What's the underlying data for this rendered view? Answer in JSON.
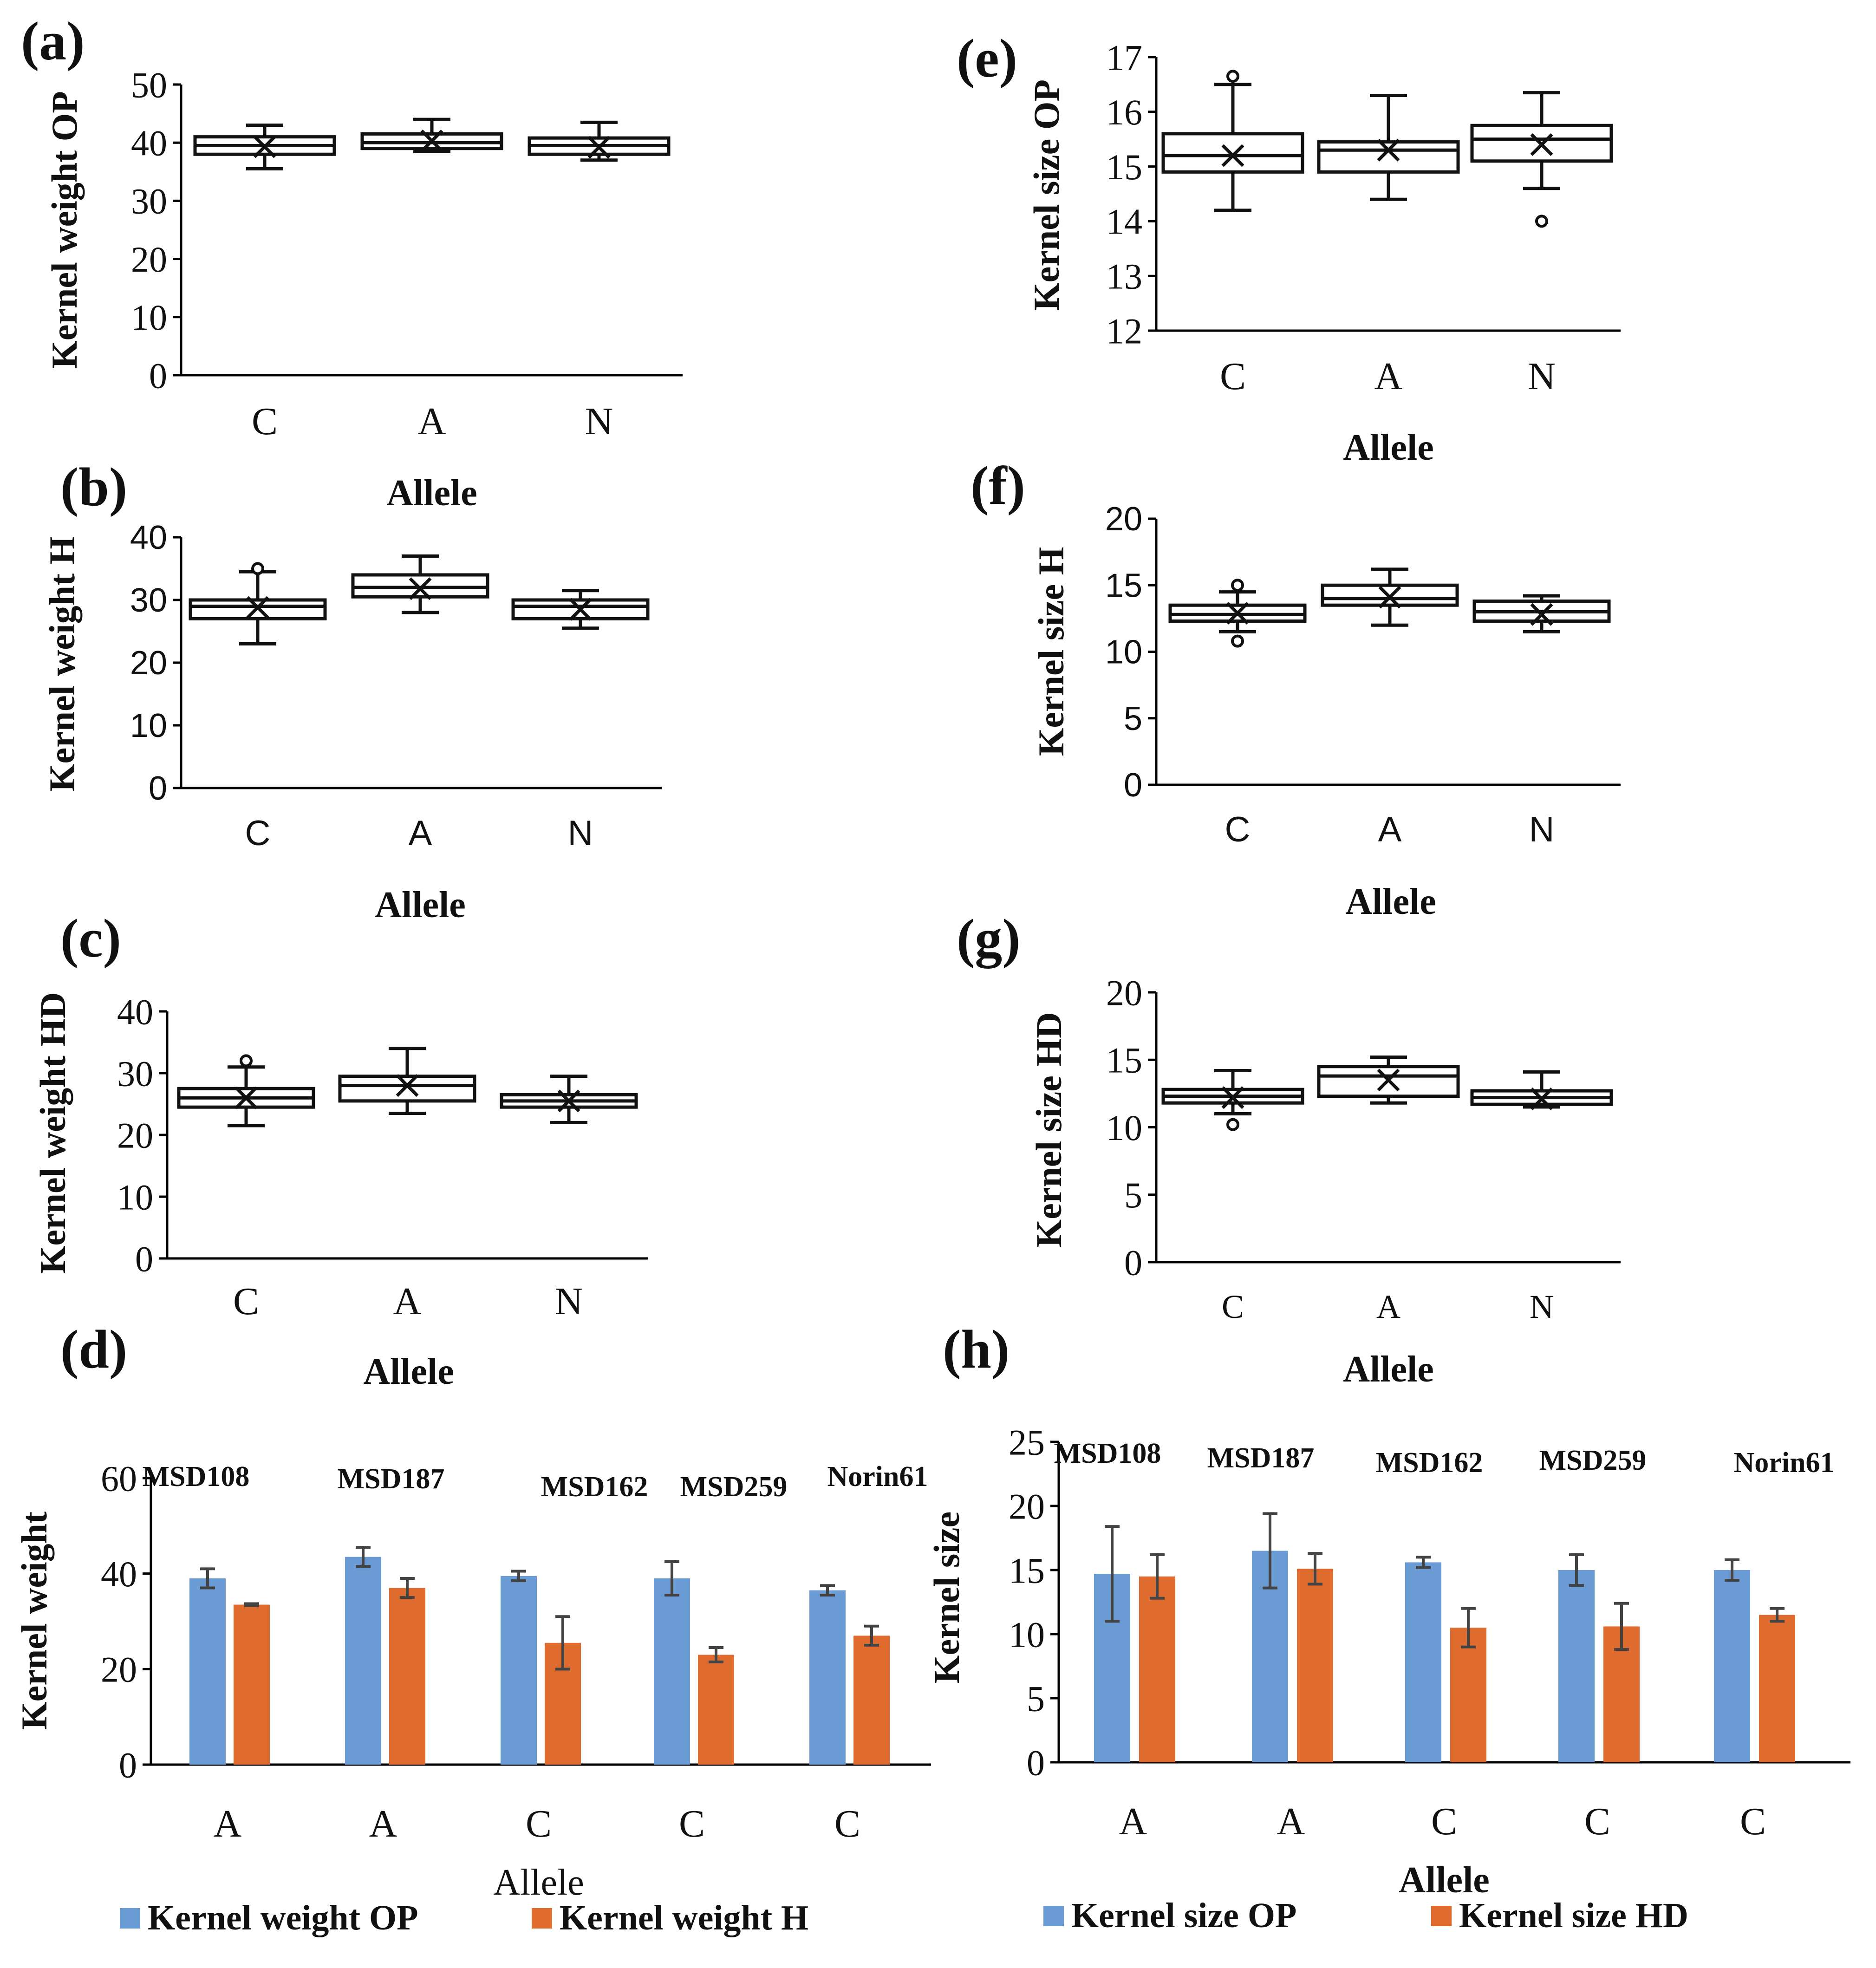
{
  "colors": {
    "op": "#6a9bd4",
    "second": "#e06b2f",
    "ink": "#111111"
  },
  "chart_data": [
    {
      "id": "a",
      "panel_label": "(a)",
      "type": "box",
      "ylabel": "Kernel weight OP",
      "xlabel": "Allele",
      "ylim": [
        0,
        50
      ],
      "ticks": [
        "0",
        "10",
        "20",
        "30",
        "40",
        "50"
      ],
      "categories": [
        "C",
        "A",
        "N"
      ],
      "boxes": [
        {
          "whisker_low": 35.5,
          "q1": 38.0,
          "median": 39.5,
          "q3": 41.0,
          "whisker_high": 43.0,
          "mean": 39.3,
          "outliers": []
        },
        {
          "whisker_low": 38.5,
          "q1": 39.0,
          "median": 40.0,
          "q3": 41.5,
          "whisker_high": 44.0,
          "mean": 40.3,
          "outliers": []
        },
        {
          "whisker_low": 37.0,
          "q1": 38.0,
          "median": 39.5,
          "q3": 40.8,
          "whisker_high": 43.5,
          "mean": 39.2,
          "outliers": []
        }
      ]
    },
    {
      "id": "b",
      "panel_label": "(b)",
      "type": "box",
      "ylabel": "Kernel weight H",
      "xlabel": "Allele",
      "ylim": [
        0,
        40
      ],
      "ticks": [
        "0",
        "10",
        "20",
        "30",
        "40"
      ],
      "categories": [
        "C",
        "A",
        "N"
      ],
      "boxes": [
        {
          "whisker_low": 23.0,
          "q1": 27.0,
          "median": 29.0,
          "q3": 30.0,
          "whisker_high": 34.5,
          "mean": 28.8,
          "outliers": [
            35.0
          ]
        },
        {
          "whisker_low": 28.0,
          "q1": 30.5,
          "median": 32.0,
          "q3": 34.0,
          "whisker_high": 37.0,
          "mean": 31.8,
          "outliers": []
        },
        {
          "whisker_low": 25.5,
          "q1": 27.0,
          "median": 29.0,
          "q3": 30.0,
          "whisker_high": 31.5,
          "mean": 28.5,
          "outliers": []
        }
      ]
    },
    {
      "id": "c",
      "panel_label": "(c)",
      "type": "box",
      "ylabel": "Kernel weight HD",
      "xlabel": "Allele",
      "ylim": [
        0,
        40
      ],
      "ticks": [
        "0",
        "10",
        "20",
        "30",
        "40"
      ],
      "categories": [
        "C",
        "A",
        "N"
      ],
      "boxes": [
        {
          "whisker_low": 21.5,
          "q1": 24.5,
          "median": 26.0,
          "q3": 27.5,
          "whisker_high": 31.0,
          "mean": 26.0,
          "outliers": [
            32.0
          ]
        },
        {
          "whisker_low": 23.5,
          "q1": 25.5,
          "median": 28.0,
          "q3": 29.5,
          "whisker_high": 34.0,
          "mean": 28.0,
          "outliers": []
        },
        {
          "whisker_low": 22.0,
          "q1": 24.5,
          "median": 25.5,
          "q3": 26.5,
          "whisker_high": 29.5,
          "mean": 25.5,
          "outliers": []
        }
      ]
    },
    {
      "id": "d",
      "panel_label": "(d)",
      "type": "bar",
      "ylabel": "Kernel weight",
      "xlabel": "Allele",
      "ylim": [
        0,
        60
      ],
      "ticks": [
        "0",
        "20",
        "40",
        "60"
      ],
      "categories": [
        "A",
        "A",
        "C",
        "C",
        "C"
      ],
      "group_labels": [
        "MSD108",
        "MSD187",
        "MSD162",
        "MSD259",
        "Norin61"
      ],
      "series": [
        {
          "name": "Kernel weight OP",
          "color": "#6a9bd4",
          "values": [
            39.0,
            43.5,
            39.5,
            39.0,
            36.5
          ],
          "errors": [
            2.0,
            2.0,
            1.0,
            3.5,
            1.0
          ]
        },
        {
          "name": "Kernel weight H",
          "color": "#e06b2f",
          "values": [
            33.5,
            37.0,
            25.5,
            23.0,
            27.0
          ],
          "errors": [
            0.2,
            2.0,
            5.5,
            1.5,
            2.0
          ]
        }
      ]
    },
    {
      "id": "e",
      "panel_label": "(e)",
      "type": "box",
      "ylabel": "Kernel size OP",
      "xlabel": "Allele",
      "ylim": [
        12,
        17
      ],
      "ticks": [
        "12",
        "13",
        "14",
        "15",
        "16",
        "17"
      ],
      "categories": [
        "C",
        "A",
        "N"
      ],
      "boxes": [
        {
          "whisker_low": 14.2,
          "q1": 14.9,
          "median": 15.2,
          "q3": 15.6,
          "whisker_high": 16.5,
          "mean": 15.2,
          "outliers": [
            16.65
          ]
        },
        {
          "whisker_low": 14.4,
          "q1": 14.9,
          "median": 15.3,
          "q3": 15.45,
          "whisker_high": 16.3,
          "mean": 15.3,
          "outliers": []
        },
        {
          "whisker_low": 14.6,
          "q1": 15.1,
          "median": 15.5,
          "q3": 15.75,
          "whisker_high": 16.35,
          "mean": 15.4,
          "outliers": [
            14.0
          ]
        }
      ]
    },
    {
      "id": "f",
      "panel_label": "(f)",
      "type": "box",
      "ylabel": "Kernel size H",
      "xlabel": "Allele",
      "ylim": [
        0,
        20
      ],
      "ticks": [
        "0",
        "5",
        "10",
        "15",
        "20"
      ],
      "categories": [
        "C",
        "A",
        "N"
      ],
      "boxes": [
        {
          "whisker_low": 11.5,
          "q1": 12.3,
          "median": 12.8,
          "q3": 13.5,
          "whisker_high": 14.5,
          "mean": 12.9,
          "outliers": [
            15.0,
            10.8
          ]
        },
        {
          "whisker_low": 12.0,
          "q1": 13.5,
          "median": 14.0,
          "q3": 15.0,
          "whisker_high": 16.2,
          "mean": 14.1,
          "outliers": []
        },
        {
          "whisker_low": 11.5,
          "q1": 12.3,
          "median": 13.0,
          "q3": 13.8,
          "whisker_high": 14.2,
          "mean": 12.8,
          "outliers": []
        }
      ]
    },
    {
      "id": "g",
      "panel_label": "(g)",
      "type": "box",
      "ylabel": "Kernel size HD",
      "xlabel": "Allele",
      "ylim": [
        0,
        20
      ],
      "ticks": [
        "0",
        "5",
        "10",
        "15",
        "20"
      ],
      "categories": [
        "C",
        "A",
        "N"
      ],
      "boxes": [
        {
          "whisker_low": 11.0,
          "q1": 11.8,
          "median": 12.3,
          "q3": 12.8,
          "whisker_high": 14.2,
          "mean": 12.2,
          "outliers": [
            10.2
          ]
        },
        {
          "whisker_low": 11.8,
          "q1": 12.3,
          "median": 13.8,
          "q3": 14.5,
          "whisker_high": 15.2,
          "mean": 13.5,
          "outliers": []
        },
        {
          "whisker_low": 11.5,
          "q1": 11.7,
          "median": 12.2,
          "q3": 12.7,
          "whisker_high": 14.1,
          "mean": 12.1,
          "outliers": []
        }
      ]
    },
    {
      "id": "h",
      "panel_label": "(h)",
      "type": "bar",
      "ylabel": "Kernel size",
      "xlabel": "Allele",
      "ylim": [
        0,
        25
      ],
      "ticks": [
        "0",
        "5",
        "10",
        "15",
        "20",
        "25"
      ],
      "categories": [
        "A",
        "A",
        "C",
        "C",
        "C"
      ],
      "group_labels": [
        "MSD108",
        "MSD187",
        "MSD162",
        "MSD259",
        "Norin61"
      ],
      "series": [
        {
          "name": "Kernel size OP",
          "color": "#6a9bd4",
          "values": [
            14.7,
            16.5,
            15.6,
            15.0,
            15.0
          ],
          "errors": [
            3.7,
            2.9,
            0.4,
            1.2,
            0.8
          ]
        },
        {
          "name": "Kernel size HD",
          "color": "#e06b2f",
          "values": [
            14.5,
            15.1,
            10.5,
            10.6,
            11.5
          ],
          "errors": [
            1.7,
            1.2,
            1.5,
            1.8,
            0.5
          ]
        }
      ]
    }
  ]
}
